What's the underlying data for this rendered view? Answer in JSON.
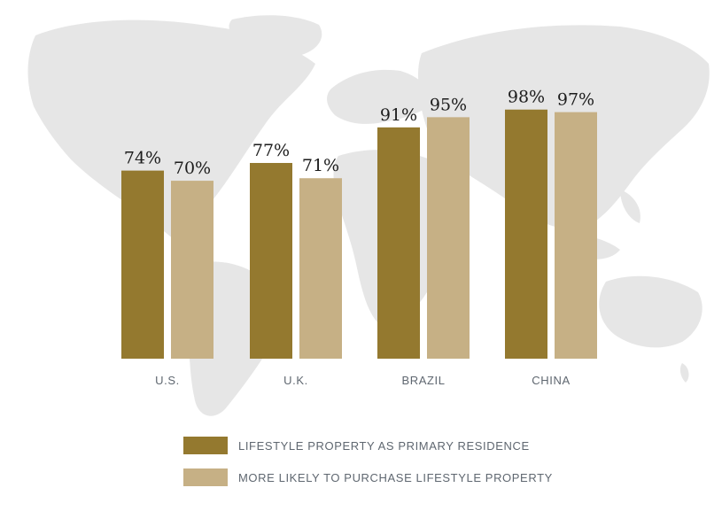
{
  "colors": {
    "primary": "#94792f",
    "secondary": "#c6b085",
    "map": "#e6e6e6",
    "label": "#5f6770"
  },
  "legend": {
    "items": [
      {
        "label": "LIFESTYLE PROPERTY AS PRIMARY RESIDENCE"
      },
      {
        "label": "MORE LIKELY TO PURCHASE LIFESTYLE PROPERTY"
      }
    ]
  },
  "chart_data": {
    "type": "bar",
    "categories": [
      "U.S.",
      "U.K.",
      "BRAZIL",
      "CHINA"
    ],
    "series": [
      {
        "name": "LIFESTYLE PROPERTY AS PRIMARY RESIDENCE",
        "values": [
          74,
          77,
          91,
          98
        ],
        "labels": [
          "74%",
          "77%",
          "91%",
          "98%"
        ]
      },
      {
        "name": "MORE LIKELY TO PURCHASE LIFESTYLE PROPERTY",
        "values": [
          70,
          71,
          95,
          97
        ],
        "labels": [
          "70%",
          "71%",
          "95%",
          "97%"
        ]
      }
    ],
    "ylim": [
      0,
      100
    ],
    "grid": false,
    "legend_position": "bottom"
  }
}
